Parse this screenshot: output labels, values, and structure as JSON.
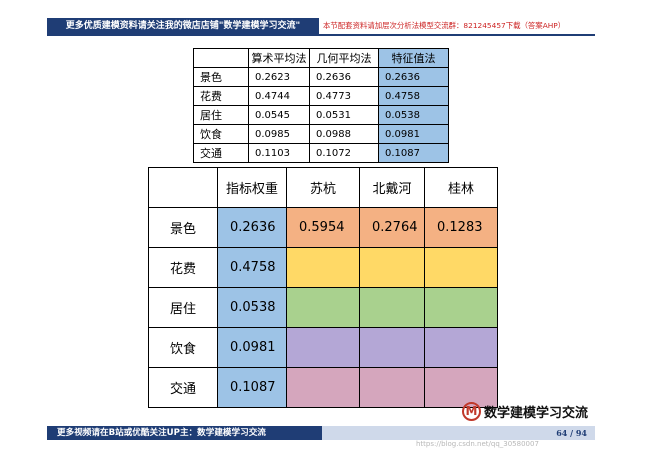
{
  "header": {
    "left_text": "更多优质建模资料请关注我的微店店铺\"数学建模学习交流\"",
    "right_text": "本节配套资料请加层次分析法模型交流群：821245457下载（答案AHP）"
  },
  "table1": {
    "columns": [
      "算术平均法",
      "几何平均法",
      "特征值法"
    ],
    "rows": [
      {
        "label": "景色",
        "values": [
          "0.2623",
          "0.2636",
          "0.2636"
        ]
      },
      {
        "label": "花费",
        "values": [
          "0.4744",
          "0.4773",
          "0.4758"
        ]
      },
      {
        "label": "居住",
        "values": [
          "0.0545",
          "0.0531",
          "0.0538"
        ]
      },
      {
        "label": "饮食",
        "values": [
          "0.0985",
          "0.0988",
          "0.0981"
        ]
      },
      {
        "label": "交通",
        "values": [
          "0.1103",
          "0.1072",
          "0.1087"
        ]
      }
    ]
  },
  "table2": {
    "columns": [
      "指标权重",
      "苏杭",
      "北戴河",
      "桂林"
    ],
    "rows": [
      {
        "label": "景色",
        "weight": "0.2636",
        "suhang": "0.5954",
        "beidaihe": "0.2764",
        "guilin": "0.1283"
      },
      {
        "label": "花费",
        "weight": "0.4758",
        "suhang": "",
        "beidaihe": "",
        "guilin": ""
      },
      {
        "label": "居住",
        "weight": "0.0538",
        "suhang": "",
        "beidaihe": "",
        "guilin": ""
      },
      {
        "label": "饮食",
        "weight": "0.0981",
        "suhang": "",
        "beidaihe": "",
        "guilin": ""
      },
      {
        "label": "交通",
        "weight": "0.1087",
        "suhang": "",
        "beidaihe": "",
        "guilin": ""
      }
    ],
    "row_colors": [
      "#f4b183",
      "#ffd966",
      "#a9d18e",
      "#b4a7d6",
      "#d5a6bd"
    ],
    "weight_color": "#9dc3e6"
  },
  "logo": {
    "mark": "M",
    "text": "数学建模学习交流"
  },
  "footer": {
    "left_text": "更多视频请在B站或优酷关注UP主：数学建模学习交流",
    "page": "64 / 94"
  },
  "watermark": "https://blog.csdn.net/qq_30580007",
  "colors": {
    "navy": "#1f3d75",
    "header_red": "#cc2222",
    "footer_light": "#cfd9ea"
  }
}
